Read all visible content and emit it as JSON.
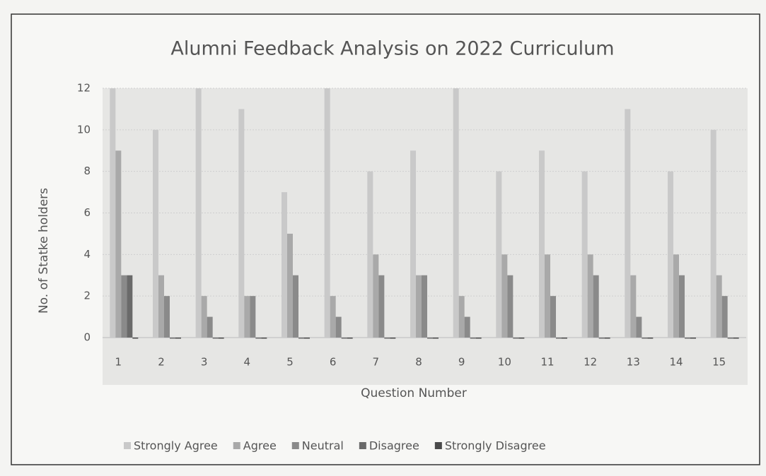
{
  "chart_data": {
    "type": "bar",
    "title": "Alumni Feedback Analysis on 2022 Curriculum",
    "xlabel": "Question Number",
    "ylabel": "No. of Statke holders",
    "categories": [
      "1",
      "2",
      "3",
      "4",
      "5",
      "6",
      "7",
      "8",
      "9",
      "10",
      "11",
      "12",
      "13",
      "14",
      "15"
    ],
    "series": [
      {
        "name": "Strongly Agree",
        "color": "#c9c9c9",
        "values": [
          12,
          10,
          12,
          11,
          7,
          12,
          8,
          9,
          12,
          8,
          9,
          8,
          11,
          8,
          10
        ]
      },
      {
        "name": "Agree",
        "color": "#a9a9a9",
        "values": [
          9,
          3,
          2,
          2,
          5,
          2,
          4,
          3,
          2,
          4,
          4,
          4,
          3,
          4,
          3
        ]
      },
      {
        "name": "Neutral",
        "color": "#8a8a8a",
        "values": [
          3,
          2,
          1,
          2,
          3,
          1,
          3,
          3,
          1,
          3,
          2,
          3,
          1,
          3,
          2
        ]
      },
      {
        "name": "Disagree",
        "color": "#6a6a6a",
        "values": [
          3,
          0,
          0,
          0,
          0,
          0,
          0,
          0,
          0,
          0,
          0,
          0,
          0,
          0,
          0
        ]
      },
      {
        "name": "Strongly Disagree",
        "color": "#4a4a4a",
        "values": [
          0,
          0,
          0,
          0,
          0,
          0,
          0,
          0,
          0,
          0,
          0,
          0,
          0,
          0,
          0
        ]
      }
    ],
    "ylim": [
      0,
      12
    ],
    "yticks": [
      0,
      2,
      4,
      6,
      8,
      10,
      12
    ],
    "grid": true,
    "legend": "bottom"
  }
}
